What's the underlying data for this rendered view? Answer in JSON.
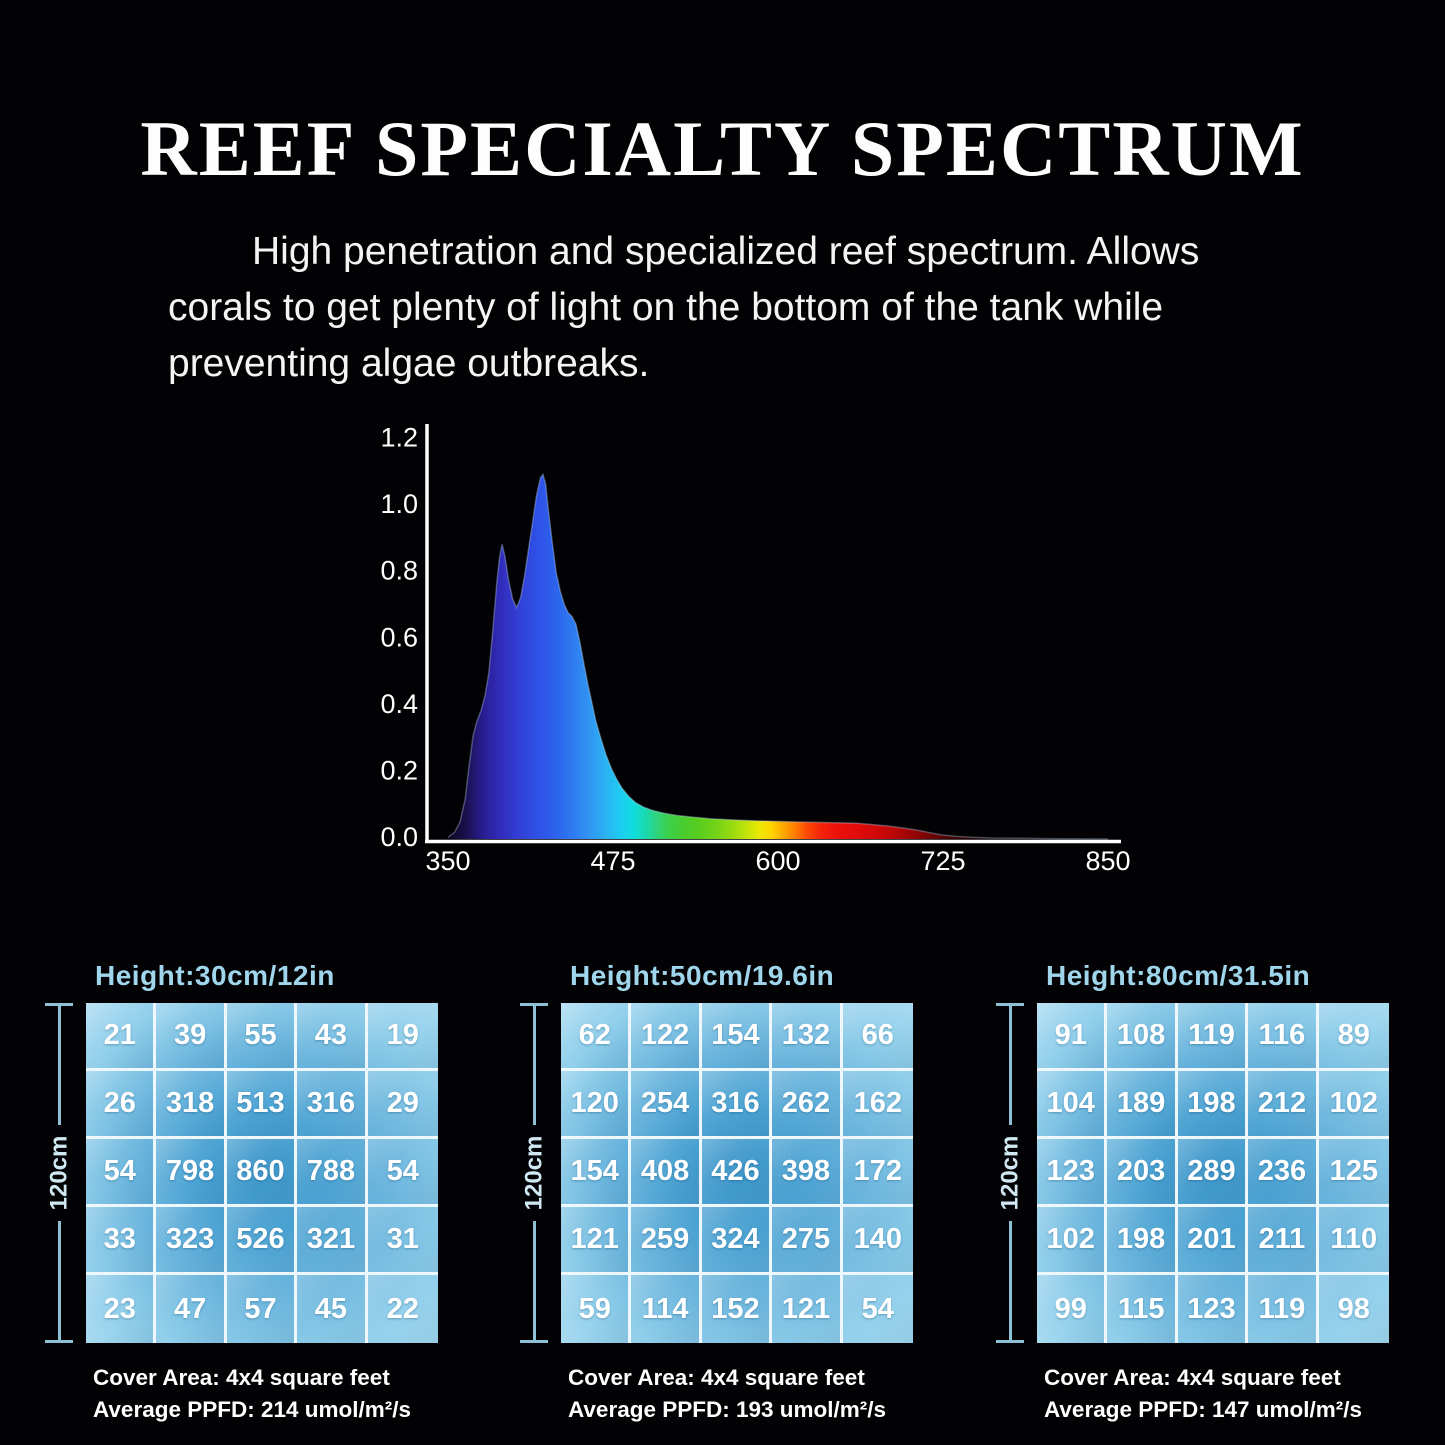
{
  "title": "REEF SPECIALTY SPECTRUM",
  "subtitle_lines": [
    "High penetration and specialized reef spectrum. Allows",
    "corals to get plenty of light on the bottom of the tank while",
    "preventing algae outbreaks."
  ],
  "chart_data": {
    "type": "area",
    "title": "",
    "xlabel": "",
    "ylabel": "",
    "xlim": [
      350,
      850
    ],
    "ylim": [
      0,
      1.2
    ],
    "x_ticks": [
      350,
      475,
      600,
      725,
      850
    ],
    "y_ticks": [
      0.0,
      0.2,
      0.4,
      0.6,
      0.8,
      1.0,
      1.2
    ],
    "grid": "off",
    "legend": "none",
    "series": [
      {
        "name": "relative-spectral-intensity",
        "points": [
          [
            350,
            0.005
          ],
          [
            355,
            0.02
          ],
          [
            359,
            0.05
          ],
          [
            363,
            0.12
          ],
          [
            366,
            0.22
          ],
          [
            369,
            0.31
          ],
          [
            372,
            0.355
          ],
          [
            375,
            0.385
          ],
          [
            378,
            0.43
          ],
          [
            381,
            0.5
          ],
          [
            384,
            0.63
          ],
          [
            387,
            0.77
          ],
          [
            389,
            0.845
          ],
          [
            391,
            0.885
          ],
          [
            393,
            0.85
          ],
          [
            396,
            0.775
          ],
          [
            399,
            0.72
          ],
          [
            402,
            0.695
          ],
          [
            405,
            0.725
          ],
          [
            408,
            0.79
          ],
          [
            411,
            0.87
          ],
          [
            414,
            0.95
          ],
          [
            417,
            1.03
          ],
          [
            420,
            1.085
          ],
          [
            422,
            1.095
          ],
          [
            424,
            1.065
          ],
          [
            426,
            0.99
          ],
          [
            429,
            0.89
          ],
          [
            432,
            0.8
          ],
          [
            435,
            0.745
          ],
          [
            438,
            0.705
          ],
          [
            441,
            0.68
          ],
          [
            444,
            0.668
          ],
          [
            447,
            0.645
          ],
          [
            450,
            0.59
          ],
          [
            453,
            0.525
          ],
          [
            456,
            0.465
          ],
          [
            459,
            0.41
          ],
          [
            462,
            0.355
          ],
          [
            466,
            0.3
          ],
          [
            470,
            0.25
          ],
          [
            474,
            0.21
          ],
          [
            478,
            0.178
          ],
          [
            482,
            0.152
          ],
          [
            487,
            0.128
          ],
          [
            492,
            0.11
          ],
          [
            498,
            0.096
          ],
          [
            505,
            0.086
          ],
          [
            513,
            0.078
          ],
          [
            523,
            0.071
          ],
          [
            535,
            0.066
          ],
          [
            549,
            0.061
          ],
          [
            564,
            0.058
          ],
          [
            582,
            0.055
          ],
          [
            600,
            0.053
          ],
          [
            617,
            0.051
          ],
          [
            632,
            0.05
          ],
          [
            646,
            0.049
          ],
          [
            660,
            0.047
          ],
          [
            673,
            0.043
          ],
          [
            685,
            0.038
          ],
          [
            696,
            0.032
          ],
          [
            706,
            0.026
          ],
          [
            715,
            0.019
          ],
          [
            724,
            0.012
          ],
          [
            734,
            0.008
          ],
          [
            746,
            0.005
          ],
          [
            762,
            0.003
          ],
          [
            785,
            0.002
          ],
          [
            815,
            0.001
          ],
          [
            850,
            0.0
          ]
        ]
      }
    ],
    "spectrum_gradient": [
      [
        350,
        "#0a0620"
      ],
      [
        364,
        "#1c1150"
      ],
      [
        377,
        "#291e92"
      ],
      [
        390,
        "#312cbb"
      ],
      [
        404,
        "#3340d6"
      ],
      [
        418,
        "#2e51e6"
      ],
      [
        432,
        "#2c63ec"
      ],
      [
        446,
        "#2f7df0"
      ],
      [
        458,
        "#3197f2"
      ],
      [
        470,
        "#2bb3f3"
      ],
      [
        481,
        "#1ecdf2"
      ],
      [
        491,
        "#10dcdc"
      ],
      [
        500,
        "#1bd9ad"
      ],
      [
        508,
        "#2ed47e"
      ],
      [
        517,
        "#3dd04b"
      ],
      [
        528,
        "#49cc2e"
      ],
      [
        540,
        "#58cd1f"
      ],
      [
        553,
        "#74d318"
      ],
      [
        565,
        "#98da10"
      ],
      [
        576,
        "#c2e309"
      ],
      [
        586,
        "#ece702"
      ],
      [
        595,
        "#ffd400"
      ],
      [
        604,
        "#ffa800"
      ],
      [
        613,
        "#ff7c00"
      ],
      [
        622,
        "#fc4a04"
      ],
      [
        632,
        "#f42508"
      ],
      [
        644,
        "#ec1109"
      ],
      [
        658,
        "#e30c0c"
      ],
      [
        672,
        "#d40909"
      ],
      [
        688,
        "#bb0707"
      ],
      [
        702,
        "#980505"
      ],
      [
        716,
        "#6e0303"
      ],
      [
        730,
        "#460202"
      ],
      [
        748,
        "#240101"
      ],
      [
        770,
        "#0e0000"
      ],
      [
        800,
        "#040000"
      ],
      [
        850,
        "#000000"
      ]
    ]
  },
  "panels": [
    {
      "header": "Height:30cm/12in",
      "side_label": "120cm",
      "grid": [
        [
          21,
          39,
          55,
          43,
          19
        ],
        [
          26,
          318,
          513,
          316,
          29
        ],
        [
          54,
          798,
          860,
          788,
          54
        ],
        [
          33,
          323,
          526,
          321,
          31
        ],
        [
          23,
          47,
          57,
          45,
          22
        ]
      ],
      "cover_area": "Cover Area: 4x4 square feet",
      "avg_ppfd": "Average PPFD: 214 umol/m²/s"
    },
    {
      "header": "Height:50cm/19.6in",
      "side_label": "120cm",
      "grid": [
        [
          62,
          122,
          154,
          132,
          66
        ],
        [
          120,
          254,
          316,
          262,
          162
        ],
        [
          154,
          408,
          426,
          398,
          172
        ],
        [
          121,
          259,
          324,
          275,
          140
        ],
        [
          59,
          114,
          152,
          121,
          54
        ]
      ],
      "cover_area": "Cover Area: 4x4 square feet",
      "avg_ppfd": "Average PPFD: 193 umol/m²/s"
    },
    {
      "header": "Height:80cm/31.5in",
      "side_label": "120cm",
      "grid": [
        [
          91,
          108,
          119,
          116,
          89
        ],
        [
          104,
          189,
          198,
          212,
          102
        ],
        [
          123,
          203,
          289,
          236,
          125
        ],
        [
          102,
          198,
          201,
          211,
          110
        ],
        [
          99,
          115,
          123,
          119,
          98
        ]
      ],
      "cover_area": "Cover Area: 4x4 square feet",
      "avg_ppfd": "Average PPFD: 147 umol/m²/s"
    }
  ],
  "colors": {
    "background": "#020103",
    "header_blue": "#9fd6ec",
    "dimension_line": "#8fc0d8",
    "grid_center_blue": "#3e96c9",
    "grid_edge_blue": "#a6daf0",
    "gridline_white": "#eef7fb",
    "text_white": "#ffffff"
  }
}
